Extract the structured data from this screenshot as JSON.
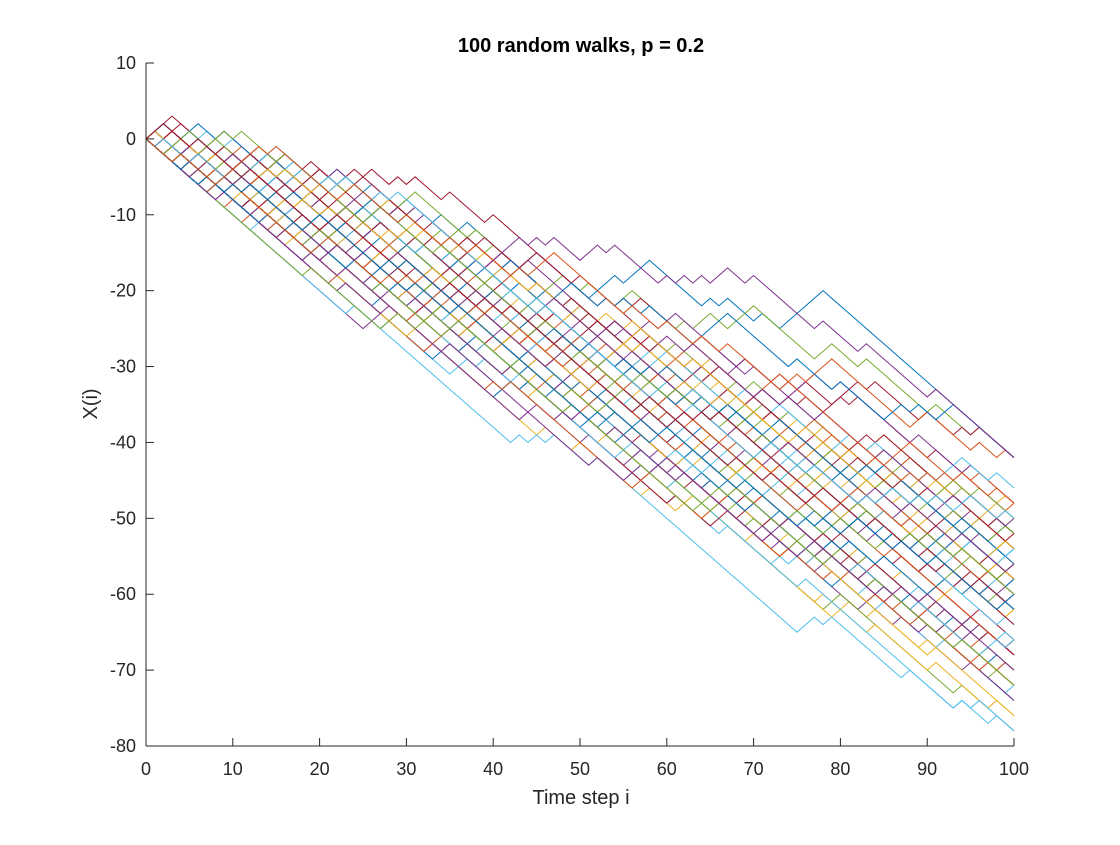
{
  "chart_data": {
    "type": "line",
    "title": "100 random walks, p = 0.2",
    "xlabel": "Time step i",
    "ylabel": "X(i)",
    "xlim": [
      0,
      100
    ],
    "ylim": [
      -80,
      10
    ],
    "xticks": [
      0,
      10,
      20,
      30,
      40,
      50,
      60,
      70,
      80,
      90,
      100
    ],
    "yticks": [
      10,
      0,
      -10,
      -20,
      -30,
      -40,
      -50,
      -60,
      -70,
      -80
    ],
    "grid": false,
    "legend": "none",
    "series_count": 100,
    "step_probability_up": 0.2,
    "colors": [
      "#0072BD",
      "#D95319",
      "#EDB120",
      "#7E2F8E",
      "#77AC30",
      "#4DBEEE",
      "#A2142F"
    ],
    "series_x": "0-100",
    "series_summary": {
      "start_value": 0,
      "max_value_reached": 3,
      "final_values_range": [
        -78,
        -42
      ],
      "representative_final_values": [
        -42,
        -44,
        -46,
        -48,
        -50,
        -52,
        -54,
        -56,
        -58,
        -60,
        -62,
        -64,
        -66,
        -68,
        -70,
        -72,
        -74,
        -78
      ]
    }
  }
}
